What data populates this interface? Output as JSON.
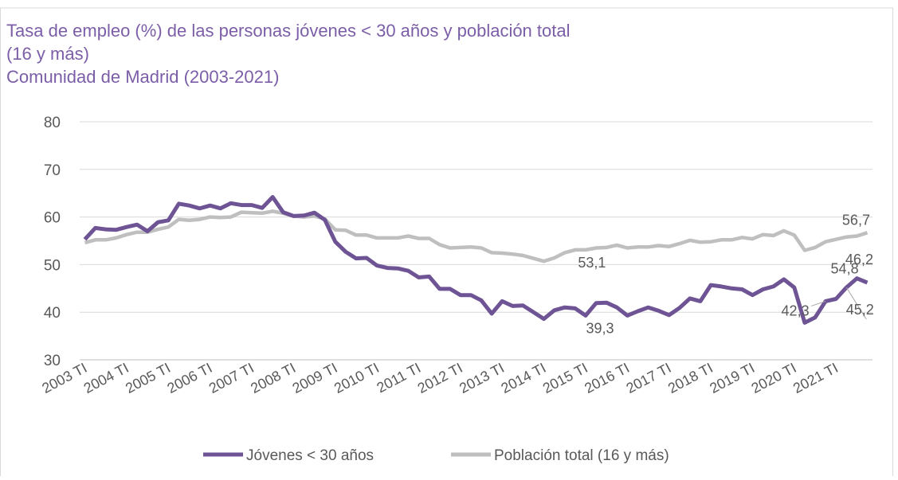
{
  "chart_data": {
    "type": "line",
    "title": "Tasa de empleo (%) de las personas jóvenes < 30 años y población total",
    "title_line2": "(16 y más)",
    "subtitle": "Comunidad de Madrid (2003-2021)",
    "categories": [
      "2003 TI",
      null,
      null,
      null,
      "2004 TI",
      null,
      null,
      null,
      "2005 TI",
      null,
      null,
      null,
      "2006 TI",
      null,
      null,
      null,
      "2007 TI",
      null,
      null,
      null,
      "2008 TI",
      null,
      null,
      null,
      "2009 TI",
      null,
      null,
      null,
      "2010 TI",
      null,
      null,
      null,
      "2011 TI",
      null,
      null,
      null,
      "2012 TI",
      null,
      null,
      null,
      "2013 TI",
      null,
      null,
      null,
      "2014 TI",
      null,
      null,
      null,
      "2015 TI",
      null,
      null,
      null,
      "2016 TI",
      null,
      null,
      null,
      "2017 TI",
      null,
      null,
      null,
      "2018 TI",
      null,
      null,
      null,
      "2019 TI",
      null,
      null,
      null,
      "2020 TI",
      null,
      null,
      null,
      "2021 TI",
      null,
      null,
      null
    ],
    "series": [
      {
        "name": "Jóvenes < 30 años",
        "color": "#6e5494",
        "values": [
          55.3,
          57.7,
          57.4,
          57.3,
          57.9,
          58.4,
          57.0,
          58.9,
          59.3,
          62.8,
          62.4,
          61.8,
          62.4,
          61.8,
          62.9,
          62.5,
          62.5,
          61.9,
          64.2,
          61.0,
          60.2,
          60.3,
          60.9,
          59.4,
          54.8,
          52.7,
          51.3,
          51.4,
          49.8,
          49.3,
          49.2,
          48.7,
          47.3,
          47.5,
          44.9,
          44.9,
          43.6,
          43.6,
          42.5,
          39.7,
          42.3,
          41.3,
          41.4,
          40.0,
          38.6,
          40.4,
          41.0,
          40.8,
          39.3,
          41.9,
          42.0,
          41.0,
          39.3,
          40.2,
          41.0,
          40.3,
          39.4,
          40.9,
          42.9,
          42.3,
          45.7,
          45.4,
          45.0,
          44.8,
          43.6,
          44.8,
          45.4,
          46.9,
          45.2,
          37.8,
          38.9,
          42.3,
          42.8,
          45.2,
          47.1,
          46.2
        ],
        "value_labels": [
          null,
          null,
          null,
          null,
          null,
          null,
          null,
          null,
          null,
          null,
          null,
          null,
          null,
          null,
          null,
          null,
          null,
          null,
          null,
          null,
          null,
          null,
          null,
          null,
          null,
          null,
          null,
          null,
          null,
          null,
          null,
          null,
          null,
          null,
          null,
          null,
          null,
          null,
          null,
          null,
          null,
          null,
          null,
          null,
          null,
          null,
          null,
          null,
          "39,3",
          null,
          null,
          null,
          null,
          null,
          null,
          null,
          null,
          null,
          null,
          null,
          null,
          null,
          null,
          null,
          null,
          null,
          null,
          null,
          null,
          null,
          null,
          "42,3",
          null,
          "45,2",
          null,
          "46,2"
        ]
      },
      {
        "name": "Población total (16 y más)",
        "color": "#bfbfbf",
        "values": [
          54.6,
          55.2,
          55.2,
          55.6,
          56.3,
          56.8,
          56.8,
          57.4,
          57.9,
          59.5,
          59.3,
          59.5,
          60.0,
          59.9,
          60.0,
          61.0,
          60.9,
          60.8,
          61.2,
          60.8,
          60.2,
          60.0,
          60.2,
          59.6,
          57.3,
          57.2,
          56.2,
          56.2,
          55.6,
          55.6,
          55.6,
          56.0,
          55.5,
          55.5,
          54.2,
          53.5,
          53.6,
          53.7,
          53.5,
          52.5,
          52.4,
          52.2,
          51.9,
          51.3,
          50.7,
          51.4,
          52.5,
          53.1,
          53.1,
          53.5,
          53.6,
          54.1,
          53.5,
          53.7,
          53.7,
          54.0,
          53.8,
          54.4,
          55.1,
          54.7,
          54.8,
          55.2,
          55.2,
          55.7,
          55.4,
          56.3,
          56.1,
          57.1,
          56.2,
          53.0,
          53.6,
          54.8,
          55.3,
          55.8,
          56.0,
          56.7
        ],
        "value_labels": [
          null,
          null,
          null,
          null,
          null,
          null,
          null,
          null,
          null,
          null,
          null,
          null,
          null,
          null,
          null,
          null,
          null,
          null,
          null,
          null,
          null,
          null,
          null,
          null,
          null,
          null,
          null,
          null,
          null,
          null,
          null,
          null,
          null,
          null,
          null,
          null,
          null,
          null,
          null,
          null,
          null,
          null,
          null,
          null,
          null,
          null,
          null,
          "53,1",
          null,
          null,
          null,
          null,
          null,
          null,
          null,
          null,
          null,
          null,
          null,
          null,
          null,
          null,
          null,
          null,
          null,
          null,
          null,
          null,
          null,
          null,
          null,
          "54,8",
          null,
          null,
          null,
          "56,7"
        ]
      }
    ],
    "ylim": [
      30,
      80
    ],
    "yticks": [
      30,
      40,
      50,
      60,
      70,
      80
    ],
    "grid": true,
    "legend": "bottom"
  }
}
